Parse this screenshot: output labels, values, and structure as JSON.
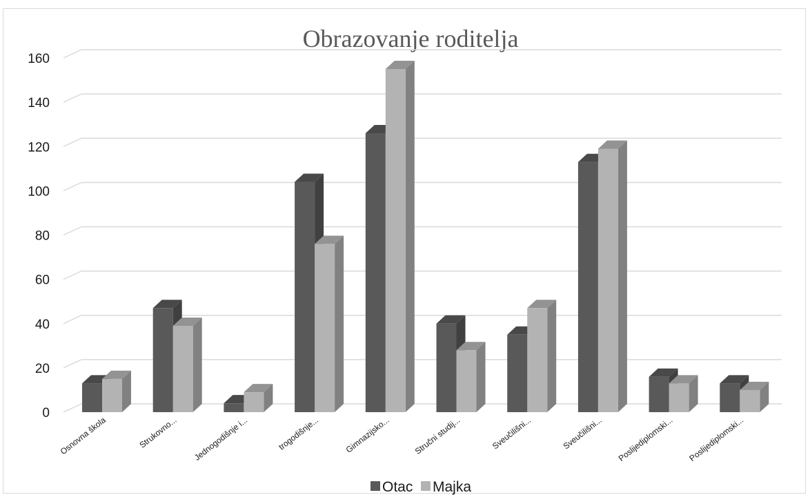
{
  "chart_data": {
    "type": "bar",
    "title": "Obrazovanje roditelja",
    "categories": [
      "Osnovna škola",
      "Strukovno...",
      "Jednogodišnje i...",
      "trogodišnje...",
      "Gimnazijsko...",
      "Stručni studij...",
      "Sveučilišni...",
      "Sveučilišni...",
      "Poslijediplomski...",
      "Poslijediplomski..."
    ],
    "series": [
      {
        "name": "Otac",
        "color": "#595959",
        "values": [
          13,
          47,
          4,
          104,
          126,
          40,
          35,
          113,
          16,
          13
        ]
      },
      {
        "name": "Majka",
        "color": "#b3b3b3",
        "values": [
          15,
          39,
          9,
          76,
          155,
          28,
          47,
          119,
          13,
          10
        ]
      }
    ],
    "ylim": [
      0,
      160
    ],
    "yticks": [
      0,
      20,
      40,
      60,
      80,
      100,
      120,
      140,
      160
    ],
    "grid": true,
    "legend": "bottom"
  }
}
